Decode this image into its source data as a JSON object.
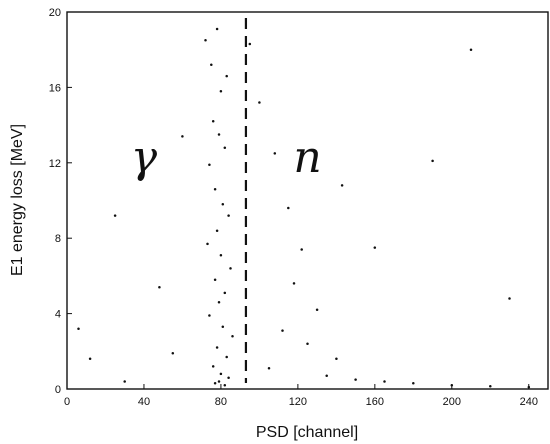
{
  "chart_data": {
    "type": "scatter",
    "title": "",
    "xlabel": "PSD [channel]",
    "ylabel": "E1 energy loss [MeV]",
    "xlim": [
      0,
      250
    ],
    "ylim": [
      0,
      20
    ],
    "xticks": [
      0,
      40,
      80,
      120,
      160,
      200,
      240
    ],
    "xtick_labels": [
      "0",
      "40",
      "80",
      "120",
      "160",
      "200",
      "240"
    ],
    "yticks": [
      0,
      4,
      8,
      12,
      16,
      20
    ],
    "ytick_labels": [
      "0",
      "4",
      "8",
      "12",
      "16",
      "20"
    ],
    "grid": false,
    "divider": {
      "x": 93,
      "style": "dashed"
    },
    "annotations": [
      {
        "text": "γ",
        "x": 40,
        "y": 11.5
      },
      {
        "text": "n",
        "x": 125,
        "y": 11.5
      }
    ],
    "series": [
      {
        "points": [
          [
            72,
            18.5
          ],
          [
            75,
            17.2
          ],
          [
            78,
            19.1
          ],
          [
            80,
            15.8
          ],
          [
            83,
            16.6
          ],
          [
            76,
            14.2
          ],
          [
            79,
            13.5
          ],
          [
            82,
            12.8
          ],
          [
            74,
            11.9
          ],
          [
            77,
            10.6
          ],
          [
            81,
            9.8
          ],
          [
            84,
            9.2
          ],
          [
            78,
            8.4
          ],
          [
            73,
            7.7
          ],
          [
            80,
            7.1
          ],
          [
            85,
            6.4
          ],
          [
            77,
            5.8
          ],
          [
            82,
            5.1
          ],
          [
            79,
            4.6
          ],
          [
            74,
            3.9
          ],
          [
            81,
            3.3
          ],
          [
            86,
            2.8
          ],
          [
            78,
            2.2
          ],
          [
            83,
            1.7
          ],
          [
            76,
            1.2
          ],
          [
            80,
            0.8
          ],
          [
            79,
            0.4
          ],
          [
            82,
            0.2
          ],
          [
            77,
            0.3
          ],
          [
            84,
            0.6
          ],
          [
            100,
            15.2
          ],
          [
            108,
            12.5
          ],
          [
            115,
            9.6
          ],
          [
            122,
            7.4
          ],
          [
            118,
            5.6
          ],
          [
            130,
            4.2
          ],
          [
            112,
            3.1
          ],
          [
            125,
            2.4
          ],
          [
            140,
            1.6
          ],
          [
            105,
            1.1
          ],
          [
            135,
            0.7
          ],
          [
            150,
            0.5
          ],
          [
            165,
            0.4
          ],
          [
            180,
            0.3
          ],
          [
            200,
            0.2
          ],
          [
            220,
            0.15
          ],
          [
            240,
            0.1
          ],
          [
            95,
            18.3
          ],
          [
            143,
            10.8
          ],
          [
            160,
            7.5
          ],
          [
            30,
            0.4
          ],
          [
            12,
            1.6
          ],
          [
            48,
            5.4
          ],
          [
            25,
            9.2
          ],
          [
            60,
            13.4
          ],
          [
            6,
            3.2
          ],
          [
            190,
            12.1
          ],
          [
            230,
            4.8
          ],
          [
            210,
            18.0
          ],
          [
            55,
            1.9
          ]
        ]
      }
    ]
  }
}
